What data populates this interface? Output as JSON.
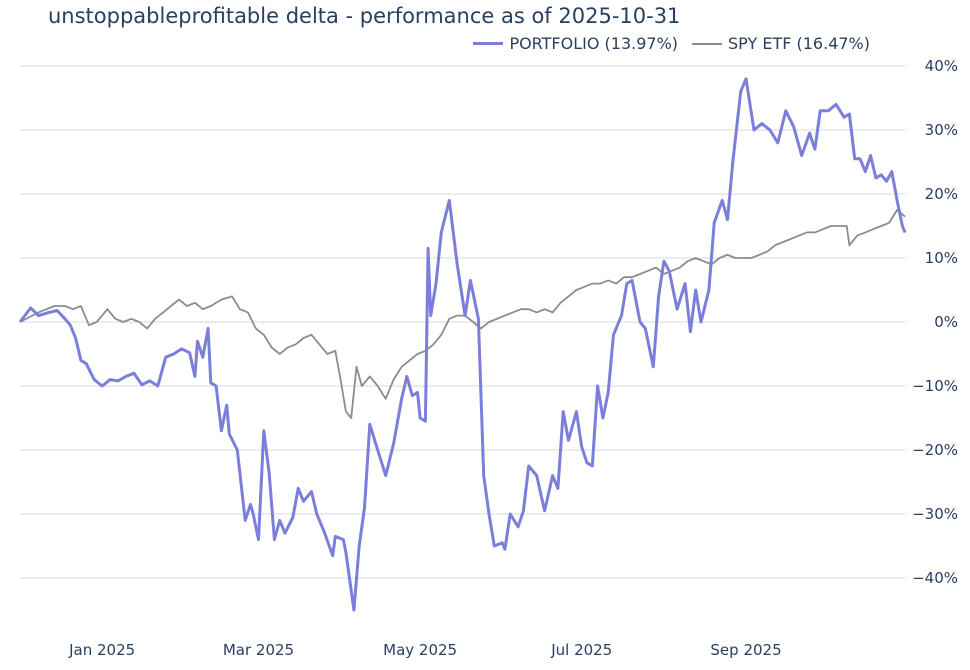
{
  "chart_data": {
    "type": "line",
    "title": "unstoppableprofitable delta - performance as of 2025-10-31",
    "xlabel": "",
    "ylabel": "",
    "ylim": [
      -0.48,
      0.42
    ],
    "y_ticks": [
      0.4,
      0.3,
      0.2,
      0.1,
      0,
      -0.1,
      -0.2,
      -0.3,
      -0.4
    ],
    "y_tick_labels": [
      "40%",
      "30%",
      "20%",
      "10%",
      "0%",
      "−10%",
      "−20%",
      "−30%",
      "−40%"
    ],
    "x_start": "2024-12-01",
    "x_end": "2025-10-31",
    "x_ticks": [
      "2025-01-01",
      "2025-03-01",
      "2025-05-01",
      "2025-07-01",
      "2025-09-01"
    ],
    "x_tick_labels": [
      "Jan 2025",
      "Mar 2025",
      "May 2025",
      "Jul 2025",
      "Sep 2025"
    ],
    "grid": true,
    "legend_position": "top-right",
    "series": [
      {
        "name": "PORTFOLIO (13.97%)",
        "color": "#7b7fdb",
        "points": [
          [
            "2024-12-01",
            0.0
          ],
          [
            "2024-12-05",
            0.022
          ],
          [
            "2024-12-08",
            0.01
          ],
          [
            "2024-12-12",
            0.015
          ],
          [
            "2024-12-15",
            0.018
          ],
          [
            "2024-12-18",
            0.005
          ],
          [
            "2024-12-20",
            -0.005
          ],
          [
            "2024-12-22",
            -0.025
          ],
          [
            "2024-12-24",
            -0.06
          ],
          [
            "2024-12-26",
            -0.065
          ],
          [
            "2024-12-29",
            -0.09
          ],
          [
            "2025-01-01",
            -0.1
          ],
          [
            "2025-01-04",
            -0.09
          ],
          [
            "2025-01-07",
            -0.092
          ],
          [
            "2025-01-10",
            -0.085
          ],
          [
            "2025-01-13",
            -0.08
          ],
          [
            "2025-01-16",
            -0.098
          ],
          [
            "2025-01-19",
            -0.092
          ],
          [
            "2025-01-22",
            -0.1
          ],
          [
            "2025-01-25",
            -0.055
          ],
          [
            "2025-01-28",
            -0.05
          ],
          [
            "2025-01-31",
            -0.042
          ],
          [
            "2025-02-03",
            -0.048
          ],
          [
            "2025-02-05",
            -0.085
          ],
          [
            "2025-02-06",
            -0.03
          ],
          [
            "2025-02-08",
            -0.055
          ],
          [
            "2025-02-10",
            -0.01
          ],
          [
            "2025-02-11",
            -0.095
          ],
          [
            "2025-02-13",
            -0.1
          ],
          [
            "2025-02-15",
            -0.17
          ],
          [
            "2025-02-17",
            -0.13
          ],
          [
            "2025-02-18",
            -0.175
          ],
          [
            "2025-02-21",
            -0.2
          ],
          [
            "2025-02-24",
            -0.31
          ],
          [
            "2025-02-26",
            -0.285
          ],
          [
            "2025-02-27",
            -0.3
          ],
          [
            "2025-03-01",
            -0.34
          ],
          [
            "2025-03-03",
            -0.17
          ],
          [
            "2025-03-05",
            -0.235
          ],
          [
            "2025-03-07",
            -0.34
          ],
          [
            "2025-03-09",
            -0.31
          ],
          [
            "2025-03-11",
            -0.33
          ],
          [
            "2025-03-14",
            -0.305
          ],
          [
            "2025-03-16",
            -0.26
          ],
          [
            "2025-03-18",
            -0.28
          ],
          [
            "2025-03-21",
            -0.265
          ],
          [
            "2025-03-23",
            -0.3
          ],
          [
            "2025-03-26",
            -0.33
          ],
          [
            "2025-03-29",
            -0.365
          ],
          [
            "2025-03-30",
            -0.335
          ],
          [
            "2025-04-02",
            -0.34
          ],
          [
            "2025-04-03",
            -0.36
          ],
          [
            "2025-04-06",
            -0.45
          ],
          [
            "2025-04-08",
            -0.35
          ],
          [
            "2025-04-10",
            -0.29
          ],
          [
            "2025-04-12",
            -0.16
          ],
          [
            "2025-04-15",
            -0.2
          ],
          [
            "2025-04-18",
            -0.24
          ],
          [
            "2025-04-21",
            -0.19
          ],
          [
            "2025-04-24",
            -0.12
          ],
          [
            "2025-04-26",
            -0.085
          ],
          [
            "2025-04-28",
            -0.115
          ],
          [
            "2025-04-30",
            -0.11
          ],
          [
            "2025-05-01",
            -0.15
          ],
          [
            "2025-05-03",
            -0.155
          ],
          [
            "2025-05-04",
            0.115
          ],
          [
            "2025-05-05",
            0.01
          ],
          [
            "2025-05-07",
            0.06
          ],
          [
            "2025-05-09",
            0.14
          ],
          [
            "2025-05-12",
            0.19
          ],
          [
            "2025-05-15",
            0.09
          ],
          [
            "2025-05-18",
            0.01
          ],
          [
            "2025-05-20",
            0.065
          ],
          [
            "2025-05-23",
            0.005
          ],
          [
            "2025-05-25",
            -0.24
          ],
          [
            "2025-05-27",
            -0.3
          ],
          [
            "2025-05-29",
            -0.35
          ],
          [
            "2025-06-01",
            -0.345
          ],
          [
            "2025-06-02",
            -0.355
          ],
          [
            "2025-06-04",
            -0.3
          ],
          [
            "2025-06-07",
            -0.32
          ],
          [
            "2025-06-09",
            -0.295
          ],
          [
            "2025-06-11",
            -0.225
          ],
          [
            "2025-06-14",
            -0.24
          ],
          [
            "2025-06-17",
            -0.295
          ],
          [
            "2025-06-20",
            -0.24
          ],
          [
            "2025-06-22",
            -0.26
          ],
          [
            "2025-06-24",
            -0.14
          ],
          [
            "2025-06-26",
            -0.185
          ],
          [
            "2025-06-29",
            -0.14
          ],
          [
            "2025-07-01",
            -0.195
          ],
          [
            "2025-07-03",
            -0.22
          ],
          [
            "2025-07-05",
            -0.225
          ],
          [
            "2025-07-07",
            -0.1
          ],
          [
            "2025-07-09",
            -0.15
          ],
          [
            "2025-07-11",
            -0.11
          ],
          [
            "2025-07-13",
            -0.02
          ],
          [
            "2025-07-16",
            0.01
          ],
          [
            "2025-07-18",
            0.06
          ],
          [
            "2025-07-20",
            0.065
          ],
          [
            "2025-07-23",
            0.0
          ],
          [
            "2025-07-25",
            -0.01
          ],
          [
            "2025-07-28",
            -0.07
          ],
          [
            "2025-07-30",
            0.04
          ],
          [
            "2025-08-01",
            0.095
          ],
          [
            "2025-08-03",
            0.08
          ],
          [
            "2025-08-06",
            0.02
          ],
          [
            "2025-08-09",
            0.06
          ],
          [
            "2025-08-11",
            -0.015
          ],
          [
            "2025-08-13",
            0.05
          ],
          [
            "2025-08-15",
            0.0
          ],
          [
            "2025-08-18",
            0.05
          ],
          [
            "2025-08-20",
            0.155
          ],
          [
            "2025-08-23",
            0.19
          ],
          [
            "2025-08-25",
            0.16
          ],
          [
            "2025-08-27",
            0.25
          ],
          [
            "2025-08-30",
            0.36
          ],
          [
            "2025-09-01",
            0.38
          ],
          [
            "2025-09-04",
            0.3
          ],
          [
            "2025-09-07",
            0.31
          ],
          [
            "2025-09-10",
            0.3
          ],
          [
            "2025-09-13",
            0.28
          ],
          [
            "2025-09-16",
            0.33
          ],
          [
            "2025-09-19",
            0.305
          ],
          [
            "2025-09-22",
            0.26
          ],
          [
            "2025-09-25",
            0.295
          ],
          [
            "2025-09-27",
            0.27
          ],
          [
            "2025-09-29",
            0.33
          ],
          [
            "2025-10-02",
            0.33
          ],
          [
            "2025-10-05",
            0.34
          ],
          [
            "2025-10-08",
            0.32
          ],
          [
            "2025-10-10",
            0.325
          ],
          [
            "2025-10-12",
            0.255
          ],
          [
            "2025-10-14",
            0.255
          ],
          [
            "2025-10-16",
            0.235
          ],
          [
            "2025-10-18",
            0.26
          ],
          [
            "2025-10-20",
            0.225
          ],
          [
            "2025-10-22",
            0.23
          ],
          [
            "2025-10-24",
            0.22
          ],
          [
            "2025-10-26",
            0.235
          ],
          [
            "2025-10-28",
            0.19
          ],
          [
            "2025-10-30",
            0.15
          ],
          [
            "2025-10-31",
            0.1397
          ]
        ]
      },
      {
        "name": "SPY ETF (16.47%)",
        "color": "#8c8c8c",
        "points": [
          [
            "2024-12-01",
            0.0
          ],
          [
            "2024-12-08",
            0.015
          ],
          [
            "2024-12-14",
            0.025
          ],
          [
            "2024-12-18",
            0.025
          ],
          [
            "2024-12-21",
            0.02
          ],
          [
            "2024-12-24",
            0.025
          ],
          [
            "2024-12-27",
            -0.005
          ],
          [
            "2024-12-30",
            0.0
          ],
          [
            "2025-01-03",
            0.02
          ],
          [
            "2025-01-06",
            0.005
          ],
          [
            "2025-01-09",
            0.0
          ],
          [
            "2025-01-12",
            0.005
          ],
          [
            "2025-01-15",
            0.0
          ],
          [
            "2025-01-18",
            -0.01
          ],
          [
            "2025-01-21",
            0.005
          ],
          [
            "2025-01-24",
            0.015
          ],
          [
            "2025-01-27",
            0.025
          ],
          [
            "2025-01-30",
            0.035
          ],
          [
            "2025-02-02",
            0.025
          ],
          [
            "2025-02-05",
            0.03
          ],
          [
            "2025-02-08",
            0.02
          ],
          [
            "2025-02-11",
            0.025
          ],
          [
            "2025-02-15",
            0.035
          ],
          [
            "2025-02-19",
            0.04
          ],
          [
            "2025-02-22",
            0.02
          ],
          [
            "2025-02-25",
            0.015
          ],
          [
            "2025-02-28",
            -0.01
          ],
          [
            "2025-03-03",
            -0.02
          ],
          [
            "2025-03-06",
            -0.04
          ],
          [
            "2025-03-09",
            -0.05
          ],
          [
            "2025-03-12",
            -0.04
          ],
          [
            "2025-03-15",
            -0.035
          ],
          [
            "2025-03-18",
            -0.025
          ],
          [
            "2025-03-21",
            -0.02
          ],
          [
            "2025-03-24",
            -0.035
          ],
          [
            "2025-03-27",
            -0.05
          ],
          [
            "2025-03-30",
            -0.045
          ],
          [
            "2025-04-01",
            -0.09
          ],
          [
            "2025-04-03",
            -0.14
          ],
          [
            "2025-04-05",
            -0.15
          ],
          [
            "2025-04-07",
            -0.07
          ],
          [
            "2025-04-09",
            -0.1
          ],
          [
            "2025-04-12",
            -0.085
          ],
          [
            "2025-04-15",
            -0.1
          ],
          [
            "2025-04-18",
            -0.12
          ],
          [
            "2025-04-21",
            -0.09
          ],
          [
            "2025-04-24",
            -0.07
          ],
          [
            "2025-04-27",
            -0.06
          ],
          [
            "2025-04-30",
            -0.05
          ],
          [
            "2025-05-03",
            -0.045
          ],
          [
            "2025-05-06",
            -0.035
          ],
          [
            "2025-05-09",
            -0.02
          ],
          [
            "2025-05-12",
            0.005
          ],
          [
            "2025-05-15",
            0.01
          ],
          [
            "2025-05-18",
            0.01
          ],
          [
            "2025-05-21",
            0.0
          ],
          [
            "2025-05-24",
            -0.01
          ],
          [
            "2025-05-27",
            0.0
          ],
          [
            "2025-05-30",
            0.005
          ],
          [
            "2025-06-02",
            0.01
          ],
          [
            "2025-06-05",
            0.015
          ],
          [
            "2025-06-08",
            0.02
          ],
          [
            "2025-06-11",
            0.02
          ],
          [
            "2025-06-14",
            0.015
          ],
          [
            "2025-06-17",
            0.02
          ],
          [
            "2025-06-20",
            0.015
          ],
          [
            "2025-06-23",
            0.03
          ],
          [
            "2025-06-26",
            0.04
          ],
          [
            "2025-06-29",
            0.05
          ],
          [
            "2025-07-02",
            0.055
          ],
          [
            "2025-07-05",
            0.06
          ],
          [
            "2025-07-08",
            0.06
          ],
          [
            "2025-07-11",
            0.065
          ],
          [
            "2025-07-14",
            0.06
          ],
          [
            "2025-07-17",
            0.07
          ],
          [
            "2025-07-20",
            0.07
          ],
          [
            "2025-07-23",
            0.075
          ],
          [
            "2025-07-26",
            0.08
          ],
          [
            "2025-07-29",
            0.085
          ],
          [
            "2025-08-01",
            0.075
          ],
          [
            "2025-08-04",
            0.08
          ],
          [
            "2025-08-07",
            0.085
          ],
          [
            "2025-08-10",
            0.095
          ],
          [
            "2025-08-13",
            0.1
          ],
          [
            "2025-08-16",
            0.095
          ],
          [
            "2025-08-19",
            0.09
          ],
          [
            "2025-08-22",
            0.1
          ],
          [
            "2025-08-25",
            0.105
          ],
          [
            "2025-08-28",
            0.1
          ],
          [
            "2025-08-31",
            0.1
          ],
          [
            "2025-09-03",
            0.1
          ],
          [
            "2025-09-06",
            0.105
          ],
          [
            "2025-09-09",
            0.11
          ],
          [
            "2025-09-12",
            0.12
          ],
          [
            "2025-09-15",
            0.125
          ],
          [
            "2025-09-18",
            0.13
          ],
          [
            "2025-09-21",
            0.135
          ],
          [
            "2025-09-24",
            0.14
          ],
          [
            "2025-09-27",
            0.14
          ],
          [
            "2025-09-30",
            0.145
          ],
          [
            "2025-10-03",
            0.15
          ],
          [
            "2025-10-06",
            0.15
          ],
          [
            "2025-10-09",
            0.15
          ],
          [
            "2025-10-10",
            0.12
          ],
          [
            "2025-10-13",
            0.135
          ],
          [
            "2025-10-16",
            0.14
          ],
          [
            "2025-10-19",
            0.145
          ],
          [
            "2025-10-22",
            0.15
          ],
          [
            "2025-10-25",
            0.155
          ],
          [
            "2025-10-28",
            0.175
          ],
          [
            "2025-10-31",
            0.1647
          ]
        ]
      }
    ]
  }
}
